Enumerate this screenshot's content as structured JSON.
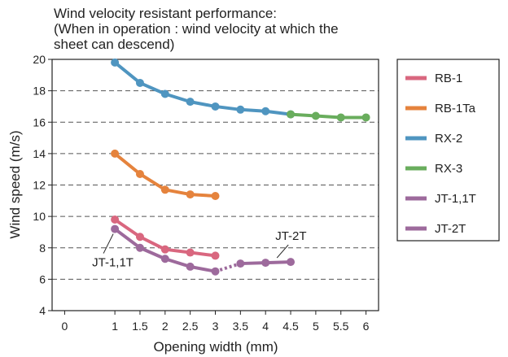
{
  "chart_data": {
    "type": "line",
    "title": [
      "Wind velocity resistant performance:",
      "(When in operation : wind velocity at which the",
      "sheet can descend)"
    ],
    "xlabel": "Opening width (mm)",
    "ylabel": "Wind speed (m/s)",
    "xlim": [
      -0.25,
      6.25
    ],
    "ylim": [
      4,
      20
    ],
    "x_ticks": [
      "0",
      "1",
      "1.5",
      "2",
      "2.5",
      "3",
      "3.5",
      "4",
      "4.5",
      "5",
      "5.5",
      "6"
    ],
    "y_ticks": [
      "4",
      "6",
      "8",
      "10",
      "12",
      "14",
      "16",
      "18",
      "20"
    ],
    "grid": "horizontal dashed",
    "legend_position": "right",
    "series": [
      {
        "name": "RB-1",
        "color": "#d9677f",
        "x": [
          1,
          1.5,
          2,
          2.5,
          3
        ],
        "y": [
          9.8,
          8.7,
          7.9,
          7.7,
          7.5
        ]
      },
      {
        "name": "RB-1Ta",
        "color": "#e5833d",
        "x": [
          1,
          1.5,
          2,
          2.5,
          3
        ],
        "y": [
          14.0,
          12.7,
          11.7,
          11.4,
          11.3
        ]
      },
      {
        "name": "RX-2",
        "color": "#4f95c0",
        "x": [
          1,
          1.5,
          2,
          2.5,
          3,
          3.5,
          4,
          4.5
        ],
        "y": [
          19.8,
          18.5,
          17.8,
          17.3,
          17.0,
          16.8,
          16.7,
          16.5
        ]
      },
      {
        "name": "RX-3",
        "color": "#69ad5d",
        "x": [
          4.5,
          5,
          5.5,
          6
        ],
        "y": [
          16.5,
          16.4,
          16.3,
          16.3
        ]
      },
      {
        "name": "JT-1,1T",
        "color": "#9d6a9c",
        "x": [
          1,
          1.5,
          2,
          2.5,
          3
        ],
        "y": [
          9.2,
          8.0,
          7.3,
          6.8,
          6.5
        ]
      },
      {
        "name": "JT-2T",
        "color": "#9d6a9c",
        "x": [
          3.5,
          4,
          4.5
        ],
        "y": [
          7.0,
          7.05,
          7.1
        ]
      }
    ],
    "connector": {
      "from": [
        3,
        6.5
      ],
      "to": [
        3.5,
        7.0
      ],
      "style": "dotted",
      "color": "#9d6a9c"
    },
    "annotations": [
      {
        "text": "JT-1,1T",
        "target_series": "JT-1,1T"
      },
      {
        "text": "JT-2T",
        "target_series": "JT-2T"
      }
    ]
  }
}
